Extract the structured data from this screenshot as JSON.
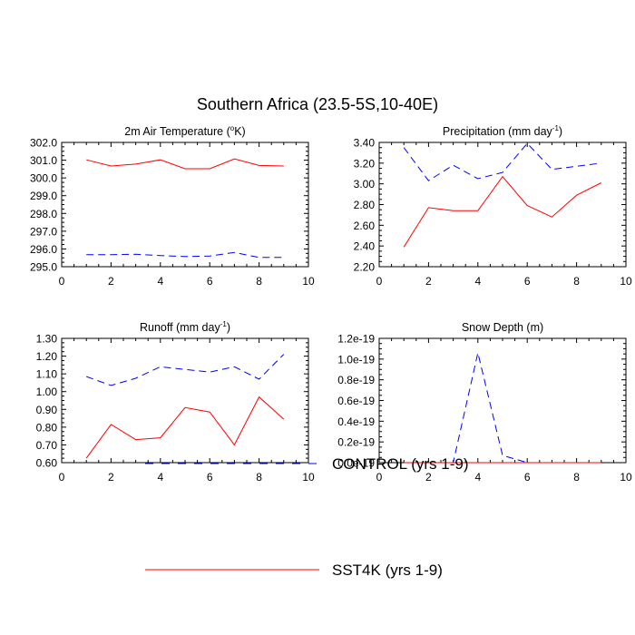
{
  "title": "Southern Africa (23.5-5S,10-40E)",
  "colors": {
    "control": "#0000ff",
    "sst4k": "#ff0000"
  },
  "legend": [
    {
      "label": "CONTROL (yrs 1-9)",
      "style": "dashed",
      "color": "#0000ff"
    },
    {
      "label": "SST4K (yrs 1-9)",
      "style": "solid",
      "color": "#ff0000"
    }
  ],
  "chart_data": [
    {
      "type": "line",
      "title": "2m Air Temperature (",
      "title_sup": "o",
      "title_suffix": "K)",
      "xlim": [
        0,
        10
      ],
      "xticks": [
        "0",
        "2",
        "4",
        "6",
        "8",
        "10"
      ],
      "ylim": [
        295.0,
        302.0
      ],
      "yticks": [
        "295.0",
        "296.0",
        "297.0",
        "298.0",
        "299.0",
        "300.0",
        "301.0",
        "302.0"
      ],
      "x": [
        1,
        2,
        3,
        4,
        5,
        6,
        7,
        8,
        9
      ],
      "series": [
        {
          "name": "CONTROL (yrs 1-9)",
          "values": [
            295.68,
            295.68,
            295.7,
            295.63,
            295.57,
            295.6,
            295.8,
            295.52,
            295.52
          ]
        },
        {
          "name": "SST4K (yrs 1-9)",
          "values": [
            301.02,
            300.67,
            300.78,
            301.02,
            300.52,
            300.52,
            301.07,
            300.7,
            300.67
          ]
        }
      ]
    },
    {
      "type": "line",
      "title": "Precipitation (mm day",
      "title_sup": "-1",
      "title_suffix": ")",
      "xlim": [
        0,
        10
      ],
      "xticks": [
        "0",
        "2",
        "4",
        "6",
        "8",
        "10"
      ],
      "ylim": [
        2.2,
        3.4
      ],
      "yticks": [
        "2.20",
        "2.40",
        "2.60",
        "2.80",
        "3.00",
        "3.20",
        "3.40"
      ],
      "x": [
        1,
        2,
        3,
        4,
        5,
        6,
        7,
        8,
        9
      ],
      "series": [
        {
          "name": "CONTROL (yrs 1-9)",
          "values": [
            3.35,
            3.03,
            3.18,
            3.05,
            3.11,
            3.39,
            3.14,
            3.17,
            3.2
          ]
        },
        {
          "name": "SST4K (yrs 1-9)",
          "values": [
            2.39,
            2.77,
            2.74,
            2.74,
            3.07,
            2.79,
            2.68,
            2.89,
            3.01
          ]
        }
      ]
    },
    {
      "type": "line",
      "title": "Runoff (mm day",
      "title_sup": "-1",
      "title_suffix": ")",
      "xlim": [
        0,
        10
      ],
      "xticks": [
        "0",
        "2",
        "4",
        "6",
        "8",
        "10"
      ],
      "ylim": [
        0.6,
        1.3
      ],
      "yticks": [
        "0.60",
        "0.70",
        "0.80",
        "0.90",
        "1.00",
        "1.10",
        "1.20",
        "1.30"
      ],
      "x": [
        1,
        2,
        3,
        4,
        5,
        6,
        7,
        8,
        9
      ],
      "series": [
        {
          "name": "CONTROL (yrs 1-9)",
          "values": [
            1.085,
            1.035,
            1.075,
            1.14,
            1.125,
            1.11,
            1.14,
            1.07,
            1.21
          ]
        },
        {
          "name": "SST4K (yrs 1-9)",
          "values": [
            0.625,
            0.815,
            0.73,
            0.74,
            0.91,
            0.885,
            0.7,
            0.97,
            0.845
          ]
        }
      ]
    },
    {
      "type": "line",
      "title": "Snow Depth (m)",
      "title_sup": "",
      "title_suffix": "",
      "xlim": [
        0,
        10
      ],
      "xticks": [
        "0",
        "2",
        "4",
        "6",
        "8",
        "10"
      ],
      "ylim": [
        0.0,
        1.2e-19
      ],
      "yticks": [
        "0.0e-19",
        "0.2e-19",
        "0.4e-19",
        "0.6e-19",
        "0.8e-19",
        "1.0e-19",
        "1.2e-19"
      ],
      "x": [
        1,
        2,
        3,
        4,
        5,
        6,
        7,
        8,
        9
      ],
      "series": [
        {
          "name": "CONTROL (yrs 1-9)",
          "values": [
            0,
            0,
            0,
            1.06e-19,
            7e-21,
            0,
            0,
            0,
            0
          ]
        },
        {
          "name": "SST4K (yrs 1-9)",
          "values": [
            0,
            0,
            0,
            0,
            0,
            0,
            0,
            0,
            0
          ]
        }
      ]
    }
  ]
}
